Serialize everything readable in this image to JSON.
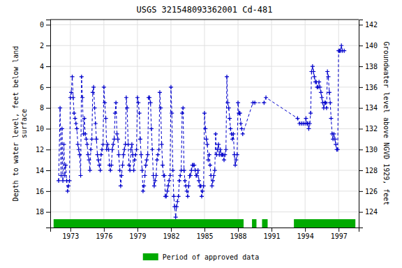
{
  "chart_data": {
    "type": "line",
    "title": "USGS 321548093362001 Cd-481",
    "y_label": "Depth to water level, feet below land\nsurface",
    "y2_label": "Groundwater level above NGVD 1929, feet",
    "xlim": [
      1971.2,
      1998.8
    ],
    "xticks": [
      1973,
      1976,
      1979,
      1982,
      1985,
      1988,
      1991,
      1994,
      1997
    ],
    "ylim": [
      19.5,
      -0.5
    ],
    "yticks": [
      0,
      2,
      4,
      6,
      8,
      10,
      12,
      14,
      16,
      18
    ],
    "y2lim": [
      122.5,
      142.5
    ],
    "y2ticks": [
      142,
      140,
      138,
      136,
      134,
      132,
      130,
      128,
      126,
      124
    ],
    "grid": true,
    "legend": "bottom",
    "x": [
      1971.95,
      1972.08,
      1972.17,
      1972.25,
      1972.33,
      1972.42,
      1972.5,
      1972.58,
      1972.67,
      1972.75,
      1972.83,
      1972.92,
      1973.0,
      1973.08,
      1973.17,
      1973.25,
      1973.33,
      1973.42,
      1973.5,
      1973.58,
      1973.67,
      1973.75,
      1973.83,
      1973.92,
      1974.0,
      1974.08,
      1974.17,
      1974.25,
      1974.33,
      1974.42,
      1974.5,
      1974.58,
      1974.67,
      1974.75,
      1974.83,
      1974.92,
      1975.0,
      1975.08,
      1975.17,
      1975.25,
      1975.33,
      1975.42,
      1975.5,
      1975.58,
      1975.67,
      1975.75,
      1975.83,
      1975.92,
      1976.0,
      1976.08,
      1976.17,
      1976.25,
      1976.33,
      1976.42,
      1976.5,
      1976.58,
      1976.67,
      1976.75,
      1976.83,
      1976.92,
      1977.0,
      1977.08,
      1977.17,
      1977.25,
      1977.33,
      1977.42,
      1977.5,
      1977.58,
      1977.67,
      1977.75,
      1977.83,
      1977.92,
      1978.0,
      1978.08,
      1978.17,
      1978.25,
      1978.33,
      1978.42,
      1978.5,
      1978.58,
      1978.67,
      1978.75,
      1978.83,
      1978.92,
      1979.0,
      1979.08,
      1979.17,
      1979.25,
      1979.33,
      1979.42,
      1979.5,
      1979.58,
      1979.67,
      1979.75,
      1979.83,
      1979.92,
      1980.0,
      1980.08,
      1980.17,
      1980.25,
      1980.33,
      1980.42,
      1980.5,
      1980.58,
      1980.67,
      1980.75,
      1980.83,
      1980.92,
      1981.0,
      1981.08,
      1981.17,
      1981.25,
      1981.33,
      1981.42,
      1981.5,
      1981.58,
      1981.67,
      1981.75,
      1981.83,
      1981.92,
      1982.0,
      1982.08,
      1982.17,
      1982.25,
      1982.33,
      1982.42,
      1982.5,
      1982.58,
      1982.67,
      1982.75,
      1982.83,
      1982.92,
      1983.0,
      1983.08,
      1983.17,
      1983.25,
      1983.33,
      1983.42,
      1983.5,
      1983.58,
      1983.67,
      1983.75,
      1983.83,
      1983.92,
      1984.0,
      1984.08,
      1984.17,
      1984.25,
      1984.33,
      1984.42,
      1984.5,
      1984.58,
      1984.67,
      1984.75,
      1984.83,
      1984.92,
      1985.0,
      1985.08,
      1985.17,
      1985.25,
      1985.33,
      1985.42,
      1985.5,
      1985.58,
      1985.67,
      1985.75,
      1985.83,
      1985.92,
      1986.0,
      1986.08,
      1986.17,
      1986.25,
      1986.33,
      1986.42,
      1986.5,
      1986.58,
      1986.67,
      1986.75,
      1986.83,
      1986.92,
      1987.0,
      1987.08,
      1987.17,
      1987.25,
      1987.33,
      1987.42,
      1987.5,
      1987.58,
      1987.67,
      1987.75,
      1987.83,
      1987.92,
      1988.0,
      1988.08,
      1988.17,
      1988.25,
      1988.33,
      1988.42,
      1989.33,
      1989.5,
      1990.33,
      1990.5,
      1993.33,
      1993.5,
      1993.67,
      1993.83,
      1994.0,
      1994.08,
      1994.17,
      1994.25,
      1994.33,
      1994.42,
      1994.5,
      1994.58,
      1994.67,
      1994.75,
      1994.83,
      1994.92,
      1995.0,
      1995.08,
      1995.17,
      1995.25,
      1995.33,
      1995.42,
      1995.5,
      1995.58,
      1995.67,
      1995.75,
      1995.83,
      1995.92,
      1996.0,
      1996.08,
      1996.17,
      1996.25,
      1996.33,
      1996.42,
      1996.5,
      1996.58,
      1996.67,
      1996.75,
      1996.83,
      1996.92,
      1997.0,
      1997.08,
      1997.17,
      1997.25,
      1997.33,
      1997.5
    ],
    "series": [
      {
        "color": "#0000cc",
        "marker": "plus",
        "line_style": "dashed",
        "values": [
          15.0,
          8.0,
          14.5,
          10.0,
          15.0,
          11.5,
          14.5,
          13.5,
          15.0,
          16.0,
          15.5,
          15.0,
          7.0,
          6.5,
          5.0,
          7.0,
          8.5,
          9.0,
          9.5,
          10.0,
          11.5,
          12.0,
          12.5,
          14.5,
          5.0,
          7.0,
          10.5,
          9.0,
          10.5,
          11.0,
          11.5,
          12.5,
          13.0,
          14.0,
          12.0,
          11.0,
          6.5,
          6.0,
          8.0,
          9.5,
          11.0,
          12.5,
          13.0,
          13.5,
          14.0,
          12.5,
          12.0,
          11.5,
          6.0,
          7.5,
          9.0,
          12.0,
          11.5,
          12.0,
          13.5,
          14.0,
          13.5,
          12.0,
          11.5,
          11.0,
          8.5,
          7.5,
          10.5,
          11.0,
          12.5,
          14.0,
          15.5,
          14.5,
          13.5,
          12.5,
          12.0,
          11.5,
          7.0,
          8.0,
          11.5,
          13.5,
          14.0,
          12.0,
          11.5,
          12.5,
          14.0,
          13.0,
          12.5,
          12.0,
          7.0,
          7.5,
          8.5,
          11.0,
          12.5,
          14.0,
          16.0,
          15.5,
          14.5,
          13.5,
          13.0,
          12.5,
          7.0,
          7.0,
          7.5,
          10.0,
          12.0,
          14.5,
          15.5,
          15.0,
          14.5,
          13.0,
          12.5,
          12.0,
          6.5,
          8.0,
          11.5,
          13.5,
          14.5,
          14.5,
          16.5,
          16.5,
          16.0,
          15.5,
          15.0,
          14.5,
          6.0,
          8.5,
          14.0,
          16.5,
          17.5,
          18.5,
          17.5,
          17.0,
          16.5,
          15.0,
          14.5,
          14.0,
          8.5,
          8.0,
          14.0,
          15.0,
          15.5,
          16.0,
          16.5,
          15.5,
          14.5,
          14.5,
          14.0,
          13.5,
          13.5,
          13.5,
          14.0,
          14.5,
          14.5,
          14.0,
          15.0,
          15.5,
          15.5,
          16.5,
          16.0,
          15.5,
          8.5,
          10.0,
          11.0,
          11.5,
          13.0,
          12.5,
          13.5,
          14.5,
          15.5,
          15.0,
          14.5,
          14.0,
          10.5,
          12.5,
          12.0,
          11.5,
          12.5,
          12.0,
          12.5,
          12.5,
          12.5,
          13.0,
          12.5,
          12.0,
          5.0,
          7.5,
          8.0,
          9.0,
          10.0,
          10.5,
          11.0,
          10.5,
          12.5,
          13.5,
          13.0,
          12.5,
          7.5,
          8.5,
          8.5,
          9.5,
          10.0,
          10.5,
          7.5,
          7.5,
          7.5,
          7.0,
          9.0,
          9.5,
          9.5,
          9.5,
          9.5,
          9.0,
          9.5,
          9.5,
          10.0,
          9.5,
          8.5,
          4.5,
          4.0,
          4.5,
          5.0,
          5.5,
          5.5,
          6.0,
          6.0,
          5.5,
          6.0,
          6.5,
          7.0,
          7.5,
          8.0,
          7.5,
          7.5,
          8.0,
          4.5,
          5.0,
          6.5,
          7.5,
          9.0,
          10.5,
          11.0,
          10.5,
          11.0,
          11.5,
          12.0,
          12.0,
          2.5,
          2.5,
          2.5,
          2.0,
          2.5,
          2.5
        ]
      }
    ],
    "spans": [
      {
        "name": "Period of approved data",
        "color": "#00aa00",
        "ranges": [
          [
            1971.5,
            1988.5
          ],
          [
            1989.25,
            1989.65
          ],
          [
            1990.15,
            1990.65
          ],
          [
            1993.0,
            1998.5
          ]
        ]
      }
    ]
  }
}
